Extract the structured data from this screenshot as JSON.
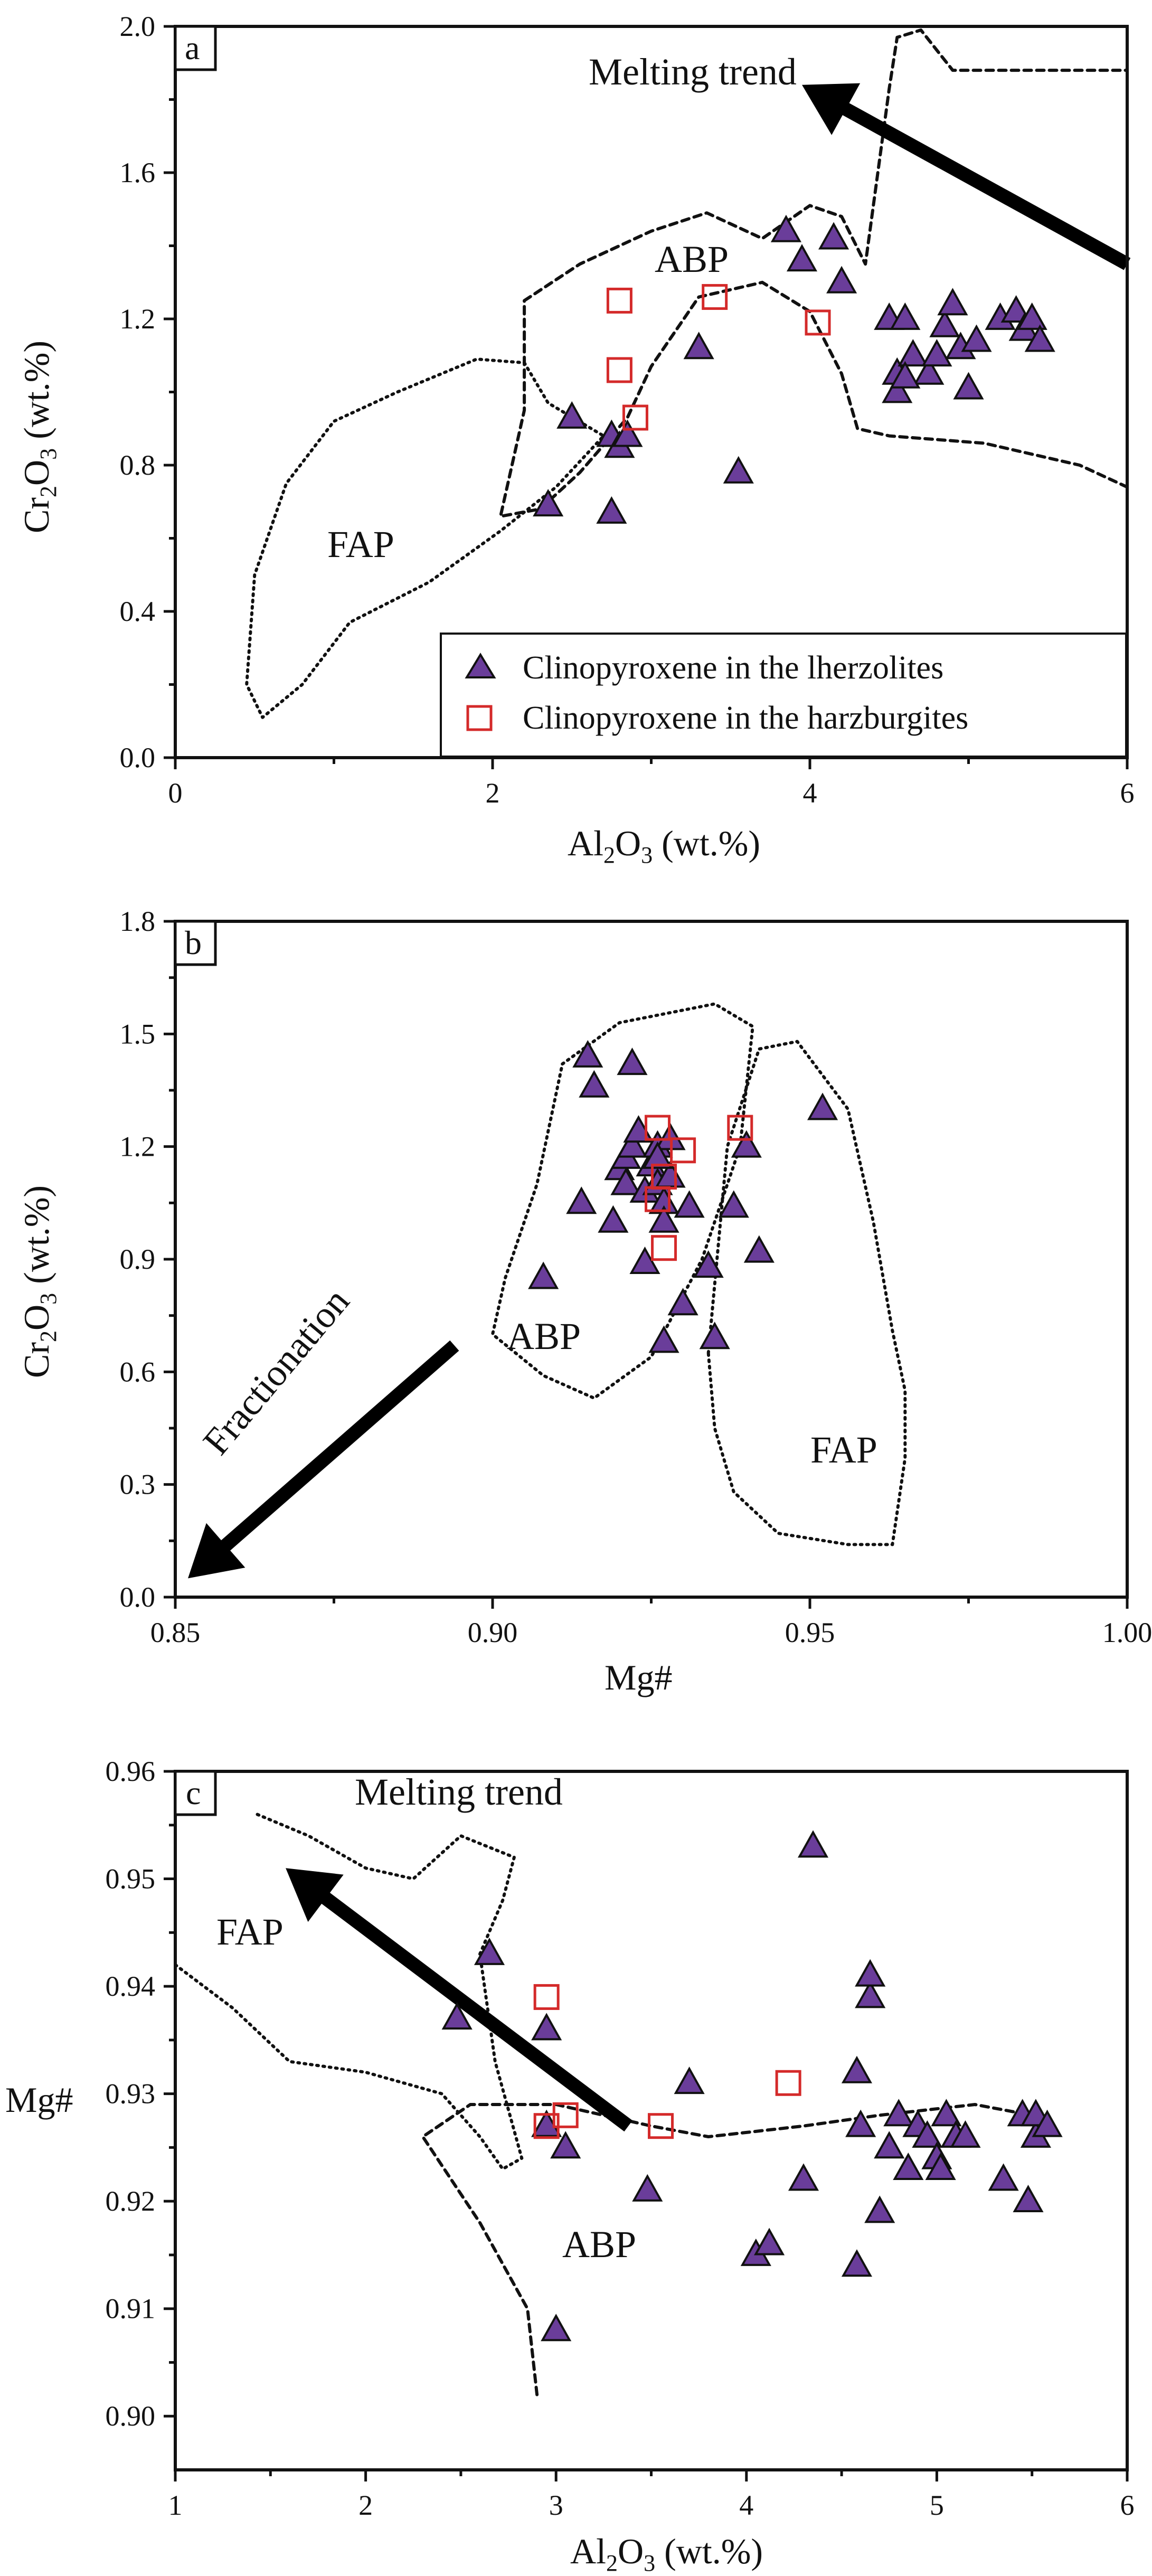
{
  "colors": {
    "lherzolite_fill": "#6a3d9a",
    "harzburgite_stroke": "#d42a2a",
    "axis": "#111111",
    "arrow": "#000000"
  },
  "legend": {
    "lherzolite": "Clinopyroxene in the lherzolites",
    "harzburgite": "Clinopyroxene in the harzburgites"
  },
  "chart_data": [
    {
      "panel": "a",
      "type": "scatter",
      "xlabel_main": "Al",
      "xlabel_sub1": "2",
      "xlabel_mid": "O",
      "xlabel_sub2": "3",
      "xlabel_tail": " (wt.%)",
      "ylabel_main": "Cr",
      "ylabel_sub1": "2",
      "ylabel_mid": "O",
      "ylabel_sub2": "3",
      "ylabel_tail": " (wt.%)",
      "xlim": [
        0,
        6
      ],
      "ylim": [
        0,
        2.0
      ],
      "x_ticks": [
        0,
        2,
        4,
        6
      ],
      "x_tick_labels": [
        "0",
        "2",
        "4",
        "6"
      ],
      "y_ticks": [
        0,
        0.4,
        0.8,
        1.2,
        1.6,
        2.0
      ],
      "y_tick_labels": [
        "0.0",
        "0.4",
        "0.8",
        "1.2",
        "1.6",
        "2.0"
      ],
      "annotations": {
        "trend": "Melting trend",
        "abp": "ABP",
        "fap": "FAP"
      },
      "series": [
        {
          "name": "Clinopyroxene in the lherzolites",
          "marker": "triangle",
          "points": [
            [
              2.35,
              0.69
            ],
            [
              2.5,
              0.93
            ],
            [
              2.75,
              0.67
            ],
            [
              2.75,
              0.88
            ],
            [
              2.8,
              0.85
            ],
            [
              2.85,
              0.88
            ],
            [
              3.3,
              1.12
            ],
            [
              3.55,
              0.78
            ],
            [
              3.85,
              1.44
            ],
            [
              3.95,
              1.36
            ],
            [
              4.15,
              1.42
            ],
            [
              4.2,
              1.3
            ],
            [
              4.5,
              1.2
            ],
            [
              4.55,
              1.05
            ],
            [
              4.6,
              1.2
            ],
            [
              4.55,
              1.0
            ],
            [
              4.65,
              1.1
            ],
            [
              4.75,
              1.05
            ],
            [
              4.8,
              1.1
            ],
            [
              4.85,
              1.18
            ],
            [
              4.9,
              1.24
            ],
            [
              4.95,
              1.12
            ],
            [
              5.0,
              1.01
            ],
            [
              5.05,
              1.14
            ],
            [
              5.2,
              1.2
            ],
            [
              5.3,
              1.22
            ],
            [
              5.35,
              1.17
            ],
            [
              5.4,
              1.2
            ],
            [
              5.45,
              1.14
            ],
            [
              4.6,
              1.04
            ]
          ]
        },
        {
          "name": "Clinopyroxene in the harzburgites",
          "marker": "square",
          "points": [
            [
              2.8,
              1.25
            ],
            [
              2.8,
              1.06
            ],
            [
              2.9,
              0.93
            ],
            [
              3.4,
              1.26
            ],
            [
              4.05,
              1.19
            ]
          ]
        }
      ],
      "regions": {
        "abp": [
          [
            2.2,
            1.25
          ],
          [
            2.55,
            1.35
          ],
          [
            3.0,
            1.44
          ],
          [
            3.35,
            1.49
          ],
          [
            3.7,
            1.42
          ],
          [
            4.0,
            1.51
          ],
          [
            4.2,
            1.48
          ],
          [
            4.35,
            1.35
          ],
          [
            4.5,
            1.83
          ],
          [
            4.55,
            1.97
          ],
          [
            4.7,
            1.99
          ],
          [
            4.9,
            1.88
          ],
          [
            5.5,
            1.88
          ],
          [
            6.0,
            1.88
          ],
          [
            6.0,
            0.74
          ],
          [
            5.7,
            0.8
          ],
          [
            5.1,
            0.86
          ],
          [
            4.5,
            0.88
          ],
          [
            4.3,
            0.9
          ],
          [
            4.2,
            1.05
          ],
          [
            4.0,
            1.22
          ],
          [
            3.7,
            1.3
          ],
          [
            3.3,
            1.26
          ],
          [
            3.0,
            1.07
          ],
          [
            2.85,
            0.93
          ],
          [
            2.55,
            0.78
          ],
          [
            2.3,
            0.68
          ],
          [
            2.05,
            0.66
          ],
          [
            2.2,
            0.95
          ],
          [
            2.2,
            1.25
          ]
        ],
        "fap": [
          [
            2.2,
            1.08
          ],
          [
            2.35,
            0.97
          ],
          [
            2.7,
            0.88
          ],
          [
            2.4,
            0.74
          ],
          [
            2.05,
            0.62
          ],
          [
            1.6,
            0.48
          ],
          [
            1.1,
            0.37
          ],
          [
            0.8,
            0.2
          ],
          [
            0.55,
            0.11
          ],
          [
            0.45,
            0.2
          ],
          [
            0.5,
            0.5
          ],
          [
            0.7,
            0.75
          ],
          [
            1.0,
            0.92
          ],
          [
            1.4,
            1.0
          ],
          [
            1.9,
            1.09
          ],
          [
            2.2,
            1.08
          ]
        ]
      },
      "arrow": {
        "from": [
          6.0,
          1.35
        ],
        "to": [
          3.95,
          1.84
        ]
      }
    },
    {
      "panel": "b",
      "type": "scatter",
      "xlabel": "Mg#",
      "ylabel_main": "Cr",
      "ylabel_sub1": "2",
      "ylabel_mid": "O",
      "ylabel_sub2": "3",
      "ylabel_tail": " (wt.%)",
      "xlim": [
        0.85,
        1.0
      ],
      "ylim": [
        0,
        1.8
      ],
      "x_ticks": [
        0.85,
        0.9,
        0.95,
        1.0
      ],
      "x_tick_labels": [
        "0.85",
        "0.90",
        "0.95",
        "1.00"
      ],
      "y_ticks": [
        0,
        0.3,
        0.6,
        0.9,
        1.2,
        1.5,
        1.8
      ],
      "y_tick_labels": [
        "0.0",
        "0.3",
        "0.6",
        "0.9",
        "1.2",
        "1.5",
        "1.8"
      ],
      "annotations": {
        "trend": "Fractionation",
        "abp": "ABP",
        "fap": "FAP"
      },
      "series": [
        {
          "name": "Clinopyroxene in the lherzolites",
          "marker": "triangle",
          "points": [
            [
              0.908,
              0.85
            ],
            [
              0.914,
              1.05
            ],
            [
              0.915,
              1.44
            ],
            [
              0.916,
              1.36
            ],
            [
              0.919,
              1.0
            ],
            [
              0.92,
              1.14
            ],
            [
              0.921,
              1.17
            ],
            [
              0.921,
              1.1
            ],
            [
              0.922,
              1.42
            ],
            [
              0.922,
              1.2
            ],
            [
              0.923,
              1.24
            ],
            [
              0.924,
              1.08
            ],
            [
              0.924,
              0.89
            ],
            [
              0.925,
              1.15
            ],
            [
              0.926,
              1.2
            ],
            [
              0.926,
              1.1
            ],
            [
              0.927,
              1.05
            ],
            [
              0.927,
              1.0
            ],
            [
              0.927,
              0.68
            ],
            [
              0.928,
              1.22
            ],
            [
              0.928,
              1.12
            ],
            [
              0.93,
              0.78
            ],
            [
              0.931,
              1.04
            ],
            [
              0.934,
              0.88
            ],
            [
              0.935,
              0.69
            ],
            [
              0.938,
              1.04
            ],
            [
              0.94,
              1.2
            ],
            [
              0.942,
              0.92
            ],
            [
              0.952,
              1.3
            ],
            [
              0.926,
              1.17
            ]
          ]
        },
        {
          "name": "Clinopyroxene in the harzburgites",
          "marker": "square",
          "points": [
            [
              0.926,
              1.25
            ],
            [
              0.926,
              1.06
            ],
            [
              0.927,
              0.93
            ],
            [
              0.93,
              1.19
            ],
            [
              0.939,
              1.25
            ],
            [
              0.927,
              1.12
            ]
          ]
        }
      ],
      "regions": {
        "abp": [
          [
            0.911,
            1.42
          ],
          [
            0.92,
            1.53
          ],
          [
            0.935,
            1.58
          ],
          [
            0.941,
            1.52
          ],
          [
            0.939,
            1.2
          ],
          [
            0.933,
            0.9
          ],
          [
            0.925,
            0.64
          ],
          [
            0.916,
            0.53
          ],
          [
            0.908,
            0.59
          ],
          [
            0.9,
            0.7
          ],
          [
            0.902,
            0.85
          ],
          [
            0.907,
            1.1
          ],
          [
            0.911,
            1.42
          ]
        ],
        "fap": [
          [
            0.934,
            0.65
          ],
          [
            0.937,
            1.2
          ],
          [
            0.942,
            1.46
          ],
          [
            0.948,
            1.48
          ],
          [
            0.956,
            1.3
          ],
          [
            0.96,
            1.0
          ],
          [
            0.963,
            0.71
          ],
          [
            0.965,
            0.55
          ],
          [
            0.965,
            0.37
          ],
          [
            0.963,
            0.14
          ],
          [
            0.956,
            0.14
          ],
          [
            0.945,
            0.17
          ],
          [
            0.938,
            0.28
          ],
          [
            0.935,
            0.45
          ],
          [
            0.934,
            0.65
          ]
        ]
      },
      "arrow": {
        "from": [
          0.894,
          0.67
        ],
        "to": [
          0.852,
          0.05
        ]
      }
    },
    {
      "panel": "c",
      "type": "scatter",
      "xlabel_main": "Al",
      "xlabel_sub1": "2",
      "xlabel_mid": "O",
      "xlabel_sub2": "3",
      "xlabel_tail": " (wt.%)",
      "ylabel": "Mg#",
      "xlim": [
        1,
        6
      ],
      "ylim": [
        0.895,
        0.96
      ],
      "x_ticks": [
        1,
        2,
        3,
        4,
        5,
        6
      ],
      "x_tick_labels": [
        "1",
        "2",
        "3",
        "4",
        "5",
        "6"
      ],
      "y_ticks": [
        0.9,
        0.91,
        0.92,
        0.93,
        0.94,
        0.95,
        0.96
      ],
      "y_tick_labels": [
        "0.90",
        "0.91",
        "0.92",
        "0.93",
        "0.94",
        "0.95",
        "0.96"
      ],
      "annotations": {
        "trend": "Melting trend",
        "abp": "ABP",
        "fap": "FAP"
      },
      "series": [
        {
          "name": "Clinopyroxene in the lherzolites",
          "marker": "triangle",
          "points": [
            [
              2.48,
              0.937
            ],
            [
              2.65,
              0.943
            ],
            [
              2.95,
              0.936
            ],
            [
              2.95,
              0.927
            ],
            [
              3.05,
              0.925
            ],
            [
              3.0,
              0.908
            ],
            [
              3.48,
              0.921
            ],
            [
              3.7,
              0.931
            ],
            [
              4.05,
              0.915
            ],
            [
              4.12,
              0.916
            ],
            [
              4.3,
              0.922
            ],
            [
              4.35,
              0.953
            ],
            [
              4.58,
              0.932
            ],
            [
              4.58,
              0.914
            ],
            [
              4.6,
              0.927
            ],
            [
              4.65,
              0.939
            ],
            [
              4.65,
              0.941
            ],
            [
              4.7,
              0.919
            ],
            [
              4.75,
              0.925
            ],
            [
              4.8,
              0.928
            ],
            [
              4.85,
              0.923
            ],
            [
              4.9,
              0.927
            ],
            [
              4.95,
              0.926
            ],
            [
              5.0,
              0.924
            ],
            [
              5.02,
              0.923
            ],
            [
              5.05,
              0.928
            ],
            [
              5.1,
              0.926
            ],
            [
              5.15,
              0.926
            ],
            [
              5.35,
              0.922
            ],
            [
              5.45,
              0.928
            ],
            [
              5.48,
              0.92
            ],
            [
              5.52,
              0.926
            ],
            [
              5.52,
              0.928
            ],
            [
              5.58,
              0.927
            ]
          ]
        },
        {
          "name": "Clinopyroxene in the harzburgites",
          "marker": "square",
          "points": [
            [
              2.95,
              0.939
            ],
            [
              2.95,
              0.927
            ],
            [
              3.05,
              0.928
            ],
            [
              3.55,
              0.927
            ],
            [
              4.22,
              0.931
            ]
          ]
        }
      ],
      "regions": {
        "fap": [
          [
            1.0,
            0.942
          ],
          [
            1.3,
            0.938
          ],
          [
            1.6,
            0.933
          ],
          [
            2.0,
            0.932
          ],
          [
            2.4,
            0.93
          ],
          [
            2.6,
            0.926
          ],
          [
            2.72,
            0.923
          ],
          [
            2.82,
            0.924
          ],
          [
            2.68,
            0.933
          ],
          [
            2.6,
            0.943
          ],
          [
            2.72,
            0.948
          ],
          [
            2.78,
            0.952
          ],
          [
            2.5,
            0.954
          ],
          [
            2.25,
            0.95
          ],
          [
            2.0,
            0.951
          ],
          [
            1.7,
            0.954
          ],
          [
            1.43,
            0.956
          ]
        ],
        "abp": [
          [
            2.9,
            0.902
          ],
          [
            2.85,
            0.91
          ],
          [
            2.6,
            0.918
          ],
          [
            2.3,
            0.926
          ],
          [
            2.55,
            0.929
          ],
          [
            3.0,
            0.929
          ],
          [
            3.5,
            0.927
          ],
          [
            3.8,
            0.926
          ],
          [
            4.3,
            0.927
          ],
          [
            4.7,
            0.928
          ],
          [
            5.2,
            0.929
          ],
          [
            5.5,
            0.928
          ]
        ]
      },
      "arrow": {
        "from": [
          3.38,
          0.927
        ],
        "to": [
          1.58,
          0.951
        ]
      }
    }
  ]
}
